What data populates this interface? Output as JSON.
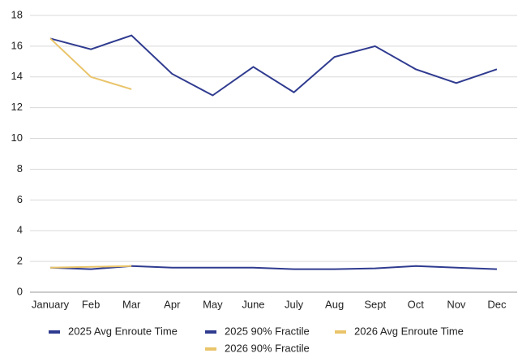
{
  "chart_data": {
    "type": "line",
    "categories": [
      "January",
      "Feb",
      "Mar",
      "Apr",
      "May",
      "June",
      "July",
      "Aug",
      "Sept",
      "Oct",
      "Nov",
      "Dec"
    ],
    "series": [
      {
        "name": "2025 Avg Enroute Time",
        "color": "#2f3b8f",
        "values": [
          1.6,
          1.5,
          1.7,
          1.6,
          1.6,
          1.6,
          1.5,
          1.5,
          1.55,
          1.7,
          1.6,
          1.5
        ]
      },
      {
        "name": "2025 90% Fractile",
        "color": "#2f3b8f",
        "values": [
          16.5,
          15.8,
          16.7,
          14.2,
          12.8,
          14.65,
          13.0,
          15.3,
          16.0,
          14.5,
          13.6,
          14.5
        ]
      },
      {
        "name": "2026 Avg Enroute Time",
        "color": "#e9c46a",
        "values": [
          1.6,
          1.65,
          1.7,
          null,
          null,
          null,
          null,
          null,
          null,
          null,
          null,
          null
        ]
      },
      {
        "name": "2026 90% Fractile",
        "color": "#e9c46a",
        "values": [
          16.5,
          14.0,
          13.2,
          null,
          null,
          null,
          null,
          null,
          null,
          null,
          null,
          null
        ]
      }
    ],
    "ylim": [
      0,
      18
    ],
    "yticks": [
      0,
      2,
      4,
      6,
      8,
      10,
      12,
      14,
      16,
      18
    ],
    "grid": true
  }
}
